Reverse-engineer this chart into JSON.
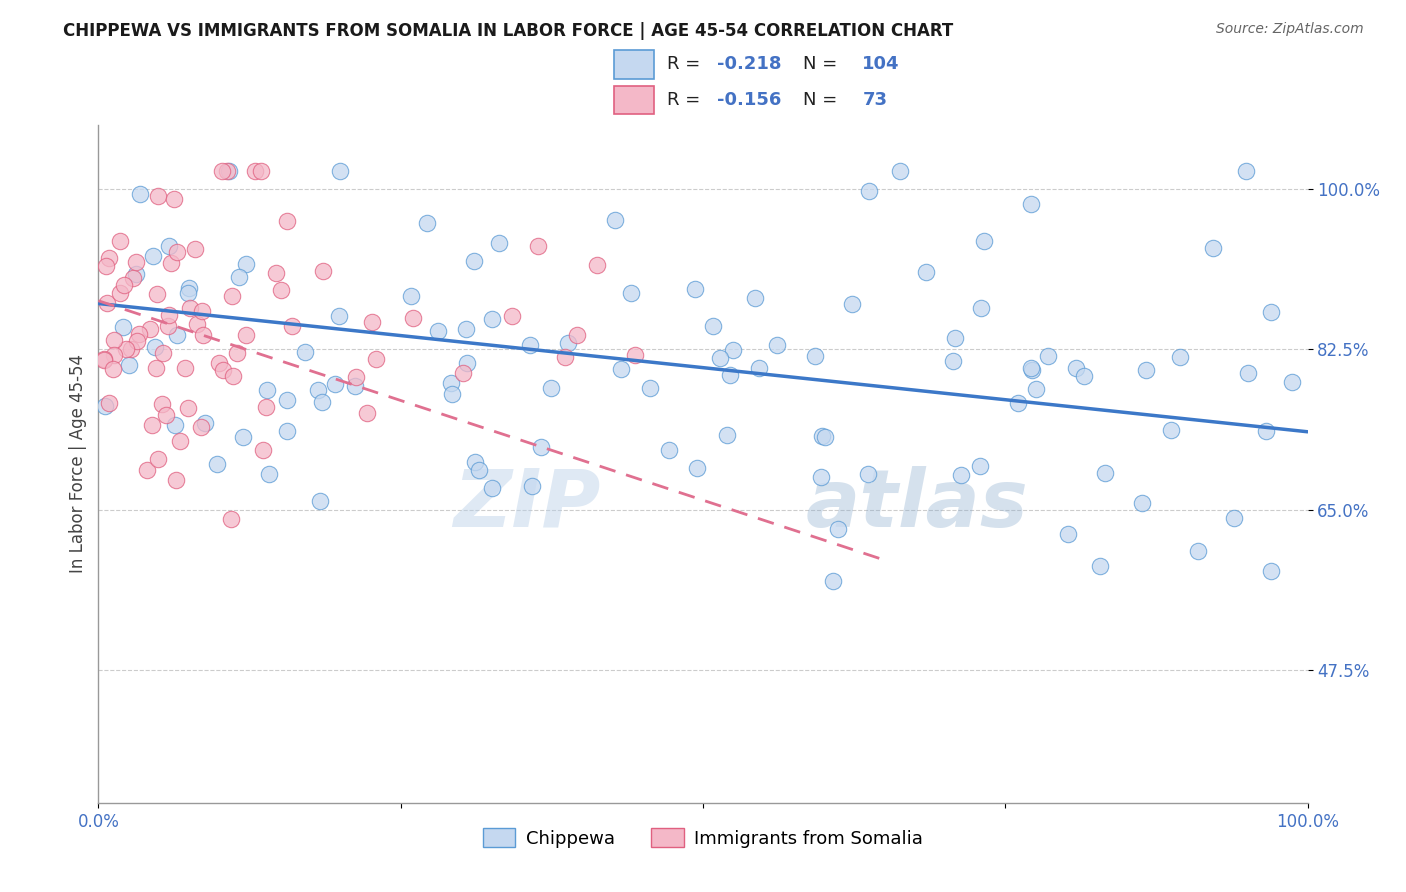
{
  "title": "CHIPPEWA VS IMMIGRANTS FROM SOMALIA IN LABOR FORCE | AGE 45-54 CORRELATION CHART",
  "source": "Source: ZipAtlas.com",
  "ylabel": "In Labor Force | Age 45-54",
  "watermark_zip": "ZIP",
  "watermark_atlas": "atlas",
  "legend_label_1": "Chippewa",
  "legend_label_2": "Immigrants from Somalia",
  "R1": -0.218,
  "N1": 104,
  "R2": -0.156,
  "N2": 73,
  "color_blue_fill": "#c5d8f0",
  "color_blue_edge": "#5b9bd5",
  "color_pink_fill": "#f4b8c8",
  "color_pink_edge": "#e06080",
  "color_line_blue": "#3c78c8",
  "color_line_pink": "#e07090",
  "color_tick_blue": "#4472c4",
  "xlim": [
    0.0,
    1.0
  ],
  "ylim": [
    0.33,
    1.07
  ],
  "yticks": [
    0.475,
    0.65,
    0.825,
    1.0
  ],
  "ytick_labels": [
    "47.5%",
    "65.0%",
    "82.5%",
    "100.0%"
  ],
  "xticks": [
    0.0,
    0.25,
    0.5,
    0.75,
    1.0
  ],
  "xtick_labels": [
    "0.0%",
    "",
    "",
    "",
    "100.0%"
  ],
  "blue_trend_x0": 0.0,
  "blue_trend_x1": 1.0,
  "blue_trend_y0": 0.875,
  "blue_trend_y1": 0.735,
  "pink_trend_x0": 0.0,
  "pink_trend_x1": 0.65,
  "pink_trend_y0": 0.878,
  "pink_trend_y1": 0.595
}
